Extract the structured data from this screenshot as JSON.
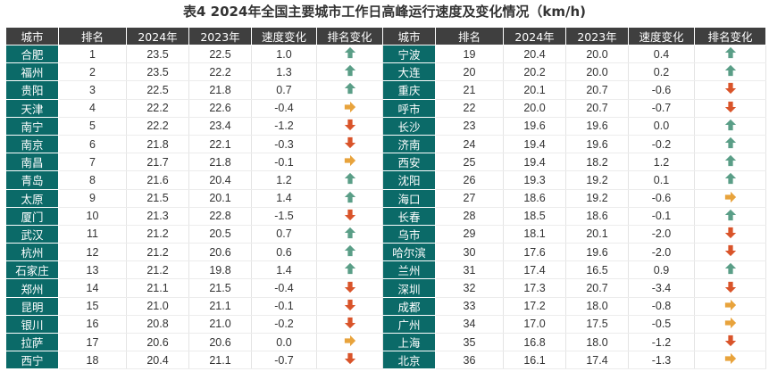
{
  "title": "表4 2024年全国主要城市工作日高峰运行速度及变化情况（km/h)",
  "headers": [
    "城市",
    "排名",
    "2024年",
    "2023年",
    "速度变化",
    "排名变化",
    "城市",
    "排名",
    "2024年",
    "2023年",
    "速度变化",
    "排名变化"
  ],
  "colors": {
    "header": "#3f3f3f",
    "city": "#0b6a68",
    "up": "#5a9e87",
    "down": "#d9542a",
    "flat": "#e8a33c"
  },
  "left_rows": [
    {
      "city": "合肥",
      "rank": "1",
      "v2024": "23.5",
      "v2023": "22.5",
      "delta": "1.0",
      "trend": "up"
    },
    {
      "city": "福州",
      "rank": "2",
      "v2024": "23.5",
      "v2023": "22.2",
      "delta": "1.3",
      "trend": "up"
    },
    {
      "city": "贵阳",
      "rank": "3",
      "v2024": "22.5",
      "v2023": "21.8",
      "delta": "0.7",
      "trend": "up"
    },
    {
      "city": "天津",
      "rank": "4",
      "v2024": "22.2",
      "v2023": "22.6",
      "delta": "-0.4",
      "trend": "flat"
    },
    {
      "city": "南宁",
      "rank": "5",
      "v2024": "22.2",
      "v2023": "23.4",
      "delta": "-1.2",
      "trend": "down"
    },
    {
      "city": "南京",
      "rank": "6",
      "v2024": "21.8",
      "v2023": "22.1",
      "delta": "-0.3",
      "trend": "down"
    },
    {
      "city": "南昌",
      "rank": "7",
      "v2024": "21.7",
      "v2023": "21.8",
      "delta": "-0.1",
      "trend": "flat"
    },
    {
      "city": "青岛",
      "rank": "8",
      "v2024": "21.6",
      "v2023": "20.4",
      "delta": "1.2",
      "trend": "up"
    },
    {
      "city": "太原",
      "rank": "9",
      "v2024": "21.5",
      "v2023": "20.1",
      "delta": "1.4",
      "trend": "up"
    },
    {
      "city": "厦门",
      "rank": "10",
      "v2024": "21.3",
      "v2023": "22.8",
      "delta": "-1.5",
      "trend": "down"
    },
    {
      "city": "武汉",
      "rank": "11",
      "v2024": "21.2",
      "v2023": "20.5",
      "delta": "0.7",
      "trend": "up"
    },
    {
      "city": "杭州",
      "rank": "12",
      "v2024": "21.2",
      "v2023": "20.6",
      "delta": "0.6",
      "trend": "up"
    },
    {
      "city": "石家庄",
      "rank": "13",
      "v2024": "21.2",
      "v2023": "19.8",
      "delta": "1.4",
      "trend": "up"
    },
    {
      "city": "郑州",
      "rank": "14",
      "v2024": "21.1",
      "v2023": "21.5",
      "delta": "-0.4",
      "trend": "down"
    },
    {
      "city": "昆明",
      "rank": "15",
      "v2024": "21.0",
      "v2023": "21.1",
      "delta": "-0.1",
      "trend": "down"
    },
    {
      "city": "银川",
      "rank": "16",
      "v2024": "20.8",
      "v2023": "21.0",
      "delta": "-0.2",
      "trend": "down"
    },
    {
      "city": "拉萨",
      "rank": "17",
      "v2024": "20.6",
      "v2023": "20.6",
      "delta": "0.0",
      "trend": "flat"
    },
    {
      "city": "西宁",
      "rank": "18",
      "v2024": "20.4",
      "v2023": "21.1",
      "delta": "-0.7",
      "trend": "down"
    }
  ],
  "right_rows": [
    {
      "city": "宁波",
      "rank": "19",
      "v2024": "20.4",
      "v2023": "20.0",
      "delta": "0.4",
      "trend": "up"
    },
    {
      "city": "大连",
      "rank": "20",
      "v2024": "20.2",
      "v2023": "20.0",
      "delta": "0.2",
      "trend": "up"
    },
    {
      "city": "重庆",
      "rank": "21",
      "v2024": "20.1",
      "v2023": "20.7",
      "delta": "-0.6",
      "trend": "down"
    },
    {
      "city": "呼市",
      "rank": "22",
      "v2024": "20.0",
      "v2023": "20.7",
      "delta": "-0.7",
      "trend": "down"
    },
    {
      "city": "长沙",
      "rank": "23",
      "v2024": "19.6",
      "v2023": "19.6",
      "delta": "0.0",
      "trend": "up"
    },
    {
      "city": "济南",
      "rank": "24",
      "v2024": "19.4",
      "v2023": "19.6",
      "delta": "-0.2",
      "trend": "up"
    },
    {
      "city": "西安",
      "rank": "25",
      "v2024": "19.4",
      "v2023": "18.2",
      "delta": "1.2",
      "trend": "up"
    },
    {
      "city": "沈阳",
      "rank": "26",
      "v2024": "19.3",
      "v2023": "19.2",
      "delta": "0.1",
      "trend": "up"
    },
    {
      "city": "海口",
      "rank": "27",
      "v2024": "18.6",
      "v2023": "19.2",
      "delta": "-0.6",
      "trend": "flat"
    },
    {
      "city": "长春",
      "rank": "28",
      "v2024": "18.5",
      "v2023": "18.6",
      "delta": "-0.1",
      "trend": "up"
    },
    {
      "city": "乌市",
      "rank": "29",
      "v2024": "18.1",
      "v2023": "20.1",
      "delta": "-2.0",
      "trend": "down"
    },
    {
      "city": "哈尔滨",
      "rank": "30",
      "v2024": "17.6",
      "v2023": "19.6",
      "delta": "-2.0",
      "trend": "down"
    },
    {
      "city": "兰州",
      "rank": "31",
      "v2024": "17.4",
      "v2023": "16.5",
      "delta": "0.9",
      "trend": "up"
    },
    {
      "city": "深圳",
      "rank": "32",
      "v2024": "17.3",
      "v2023": "20.7",
      "delta": "-3.4",
      "trend": "down"
    },
    {
      "city": "成都",
      "rank": "33",
      "v2024": "17.2",
      "v2023": "18.0",
      "delta": "-0.8",
      "trend": "flat"
    },
    {
      "city": "广州",
      "rank": "34",
      "v2024": "17.0",
      "v2023": "17.5",
      "delta": "-0.5",
      "trend": "flat"
    },
    {
      "city": "上海",
      "rank": "35",
      "v2024": "16.8",
      "v2023": "18.0",
      "delta": "-1.2",
      "trend": "down"
    },
    {
      "city": "北京",
      "rank": "36",
      "v2024": "16.1",
      "v2023": "17.4",
      "delta": "-1.3",
      "trend": "flat"
    }
  ]
}
